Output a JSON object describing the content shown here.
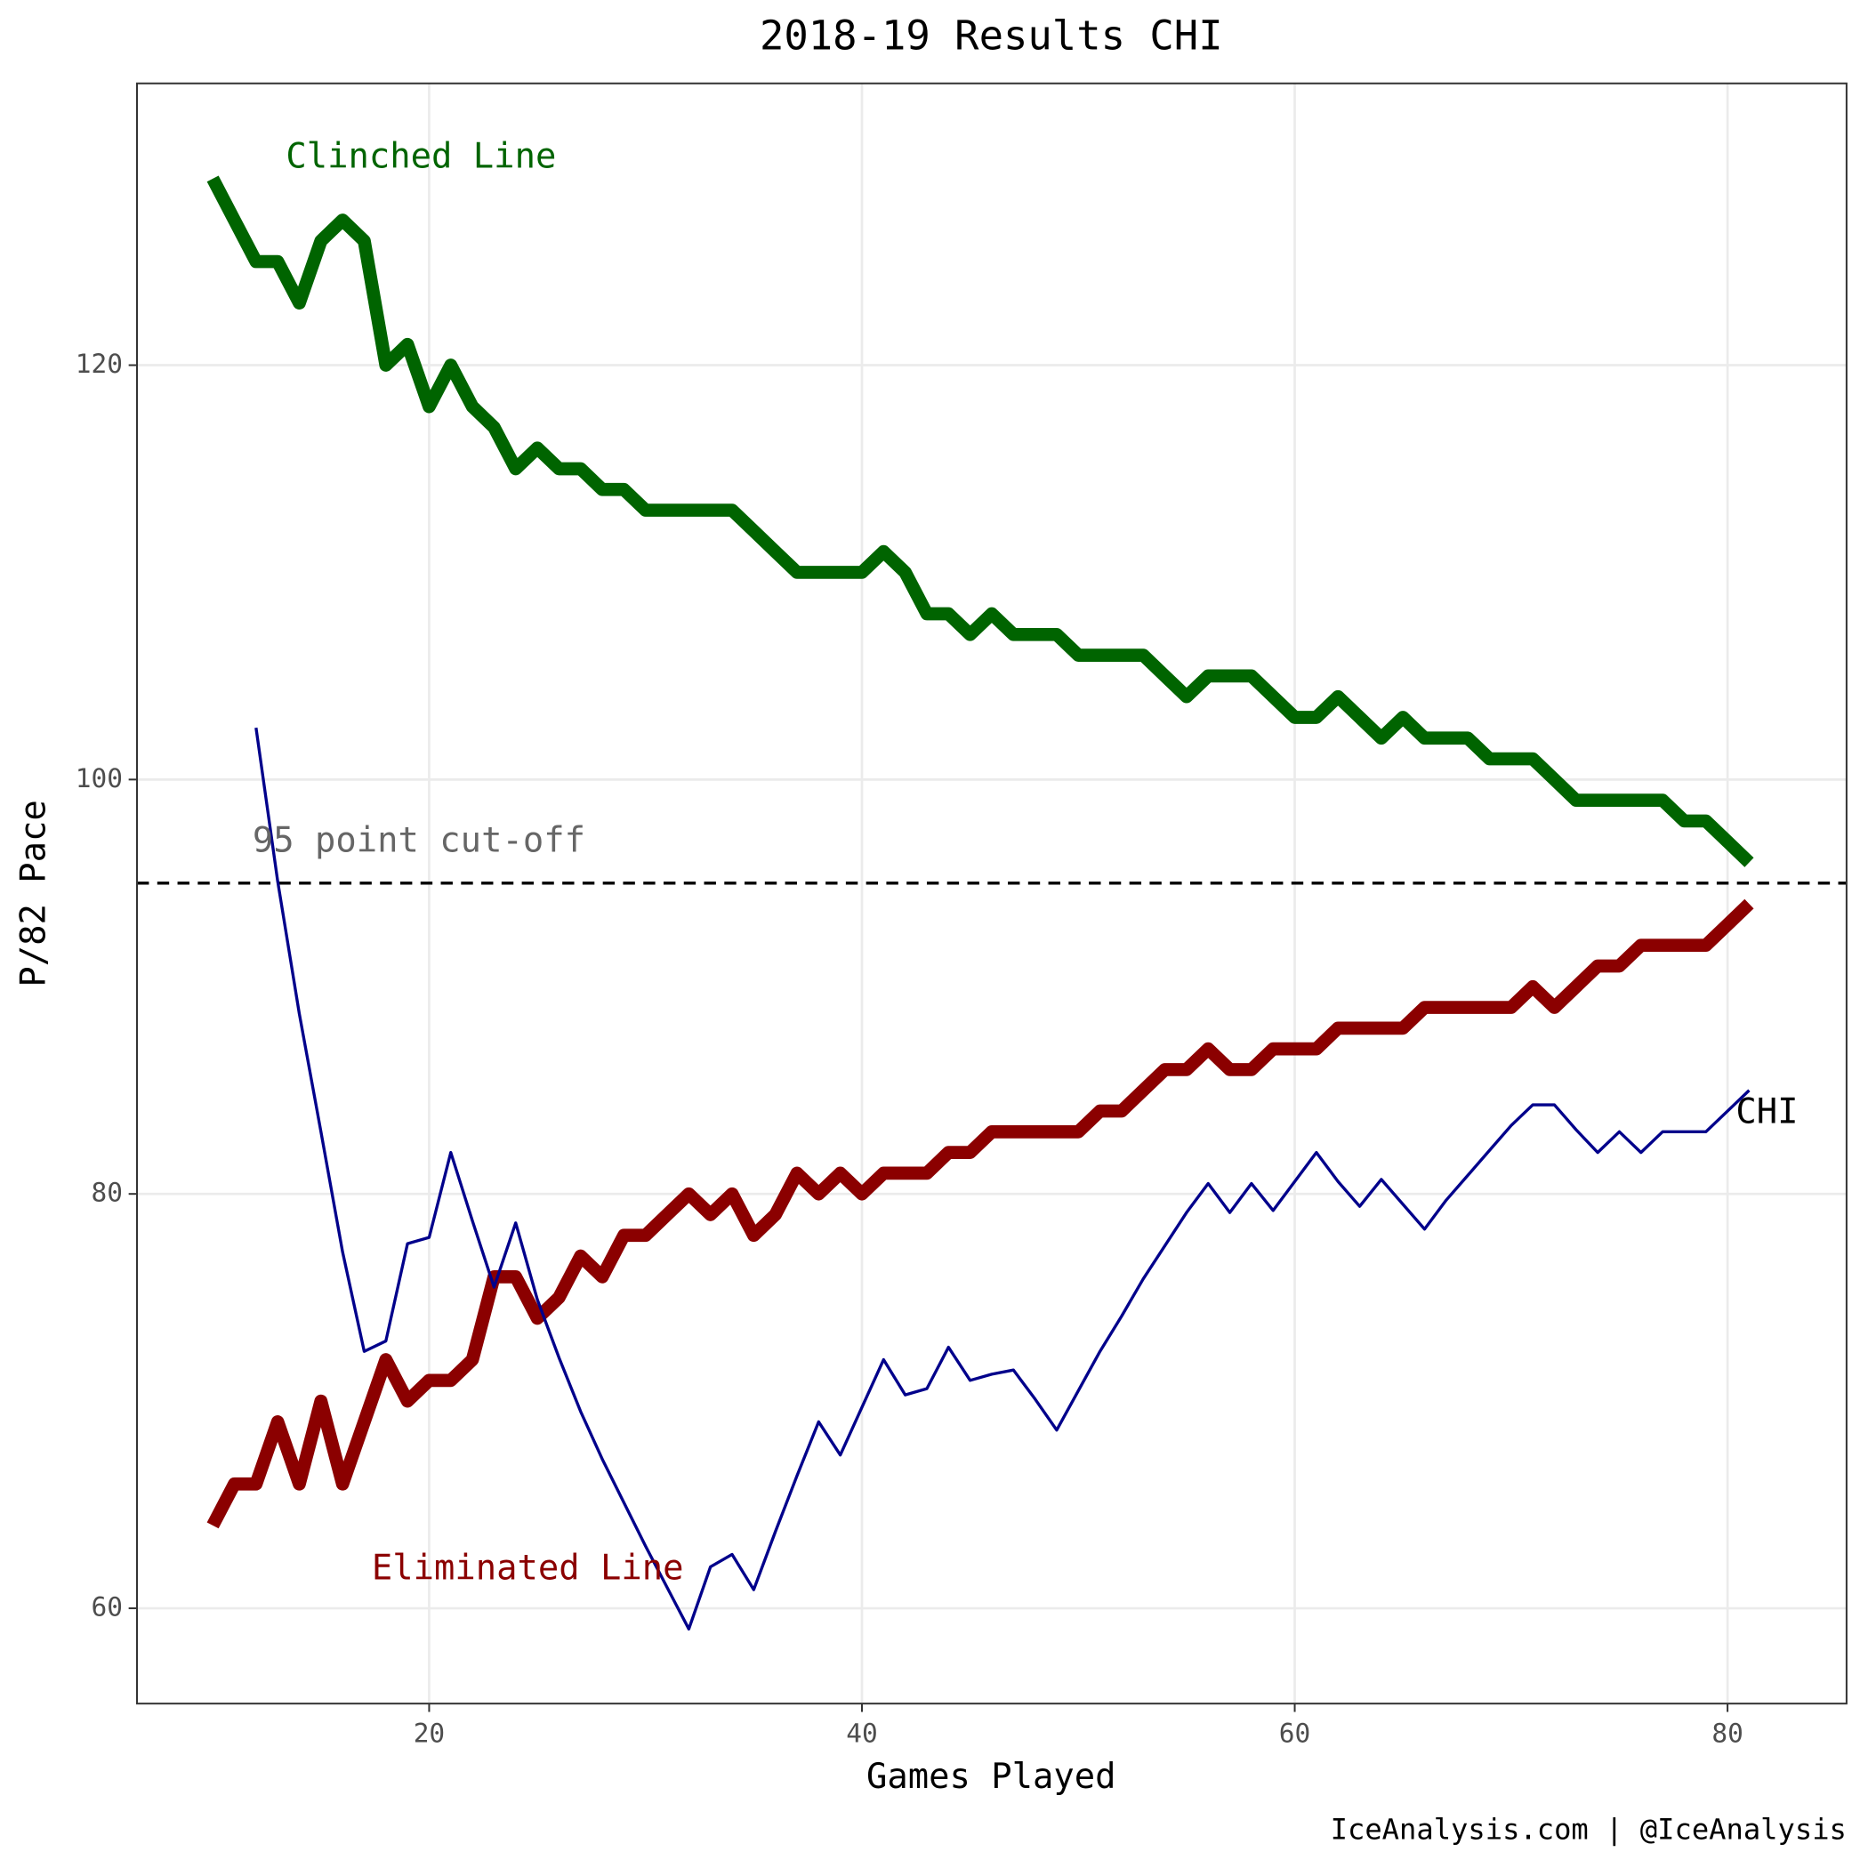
{
  "chart_data": {
    "type": "line",
    "title": "2018-19 Results CHI",
    "x_label": "Games Played",
    "y_label": "P/82 Pace",
    "caption": "IceAnalysis.com | @IceAnalysis",
    "xlim": [
      6.5,
      85.5
    ],
    "ylim": [
      55.4,
      133.6
    ],
    "xticks": [
      20,
      40,
      60,
      80
    ],
    "yticks": [
      60,
      80,
      100,
      120
    ],
    "grid": true,
    "hline": {
      "value": 95,
      "label": "95 point cut-off"
    },
    "series": [
      {
        "name": "Clinched Line",
        "color": "#006400",
        "x": [
          10,
          11,
          12,
          13,
          14,
          15,
          16,
          17,
          18,
          19,
          20,
          21,
          22,
          23,
          24,
          25,
          26,
          27,
          28,
          29,
          30,
          31,
          32,
          33,
          34,
          35,
          36,
          37,
          38,
          39,
          40,
          41,
          42,
          43,
          44,
          45,
          46,
          47,
          48,
          49,
          50,
          51,
          52,
          53,
          54,
          55,
          56,
          57,
          58,
          59,
          60,
          61,
          62,
          63,
          64,
          65,
          66,
          67,
          68,
          69,
          70,
          71,
          72,
          73,
          74,
          75,
          76,
          77,
          78,
          79,
          80,
          81
        ],
        "values": [
          129,
          127,
          125,
          125,
          123,
          126,
          127,
          126,
          120,
          121,
          118,
          120,
          118,
          117,
          115,
          116,
          115,
          115,
          114,
          114,
          113,
          113,
          113,
          113,
          113,
          112,
          111,
          110,
          110,
          110,
          110,
          111,
          110,
          108,
          108,
          107,
          108,
          107,
          107,
          107,
          106,
          106,
          106,
          106,
          105,
          104,
          105,
          105,
          105,
          104,
          103,
          103,
          104,
          103,
          102,
          103,
          102,
          102,
          102,
          101,
          101,
          101,
          100,
          99,
          99,
          99,
          99,
          99,
          98,
          98,
          97,
          96
        ]
      },
      {
        "name": "Eliminated Line",
        "color": "#8b0000",
        "x": [
          10,
          11,
          12,
          13,
          14,
          15,
          16,
          17,
          18,
          19,
          20,
          21,
          22,
          23,
          24,
          25,
          26,
          27,
          28,
          29,
          30,
          31,
          32,
          33,
          34,
          35,
          36,
          37,
          38,
          39,
          40,
          41,
          42,
          43,
          44,
          45,
          46,
          47,
          48,
          49,
          50,
          51,
          52,
          53,
          54,
          55,
          56,
          57,
          58,
          59,
          60,
          61,
          62,
          63,
          64,
          65,
          66,
          67,
          68,
          69,
          70,
          71,
          72,
          73,
          74,
          75,
          76,
          77,
          78,
          79,
          80,
          81
        ],
        "values": [
          64,
          66,
          66,
          69,
          66,
          70,
          66,
          69,
          72,
          70,
          71,
          71,
          72,
          76,
          76,
          74,
          75,
          77,
          76,
          78,
          78,
          79,
          80,
          79,
          80,
          78,
          79,
          81,
          80,
          81,
          80,
          81,
          81,
          81,
          82,
          82,
          83,
          83,
          83,
          83,
          83,
          84,
          84,
          85,
          86,
          86,
          87,
          86,
          86,
          87,
          87,
          87,
          88,
          88,
          88,
          88,
          89,
          89,
          89,
          89,
          89,
          90,
          89,
          90,
          91,
          91,
          92,
          92,
          92,
          92,
          93,
          94
        ]
      },
      {
        "name": "CHI",
        "color": "#00008b",
        "x": [
          12,
          13,
          14,
          15,
          16,
          17,
          18,
          19,
          20,
          21,
          22,
          23,
          24,
          25,
          26,
          27,
          28,
          29,
          30,
          31,
          32,
          33,
          34,
          35,
          36,
          37,
          38,
          39,
          40,
          41,
          42,
          43,
          44,
          45,
          46,
          47,
          48,
          49,
          50,
          51,
          52,
          53,
          54,
          55,
          56,
          57,
          58,
          59,
          60,
          61,
          62,
          63,
          64,
          65,
          66,
          67,
          68,
          69,
          70,
          71,
          72,
          73,
          74,
          75,
          76,
          77,
          78,
          79,
          80,
          81
        ],
        "values": [
          102.5,
          95.1,
          88.7,
          83,
          77.2,
          72.4,
          72.9,
          77.6,
          77.9,
          82,
          78.7,
          75.5,
          78.6,
          74.9,
          72.1,
          69.5,
          67.2,
          65.1,
          63,
          61,
          59,
          62,
          62.6,
          60.9,
          63.7,
          66.4,
          69,
          67.4,
          69.7,
          72,
          70.3,
          70.6,
          72.6,
          71,
          71.3,
          71.5,
          70.1,
          68.6,
          70.5,
          72.4,
          74.1,
          75.9,
          77.5,
          79.1,
          80.5,
          79.1,
          80.5,
          79.2,
          80.6,
          82,
          80.6,
          79.4,
          80.7,
          79.5,
          78.3,
          79.7,
          80.9,
          82.1,
          83.3,
          84.3,
          84.3,
          83.1,
          82,
          83,
          82,
          83,
          83,
          83,
          84,
          85
        ]
      }
    ]
  }
}
